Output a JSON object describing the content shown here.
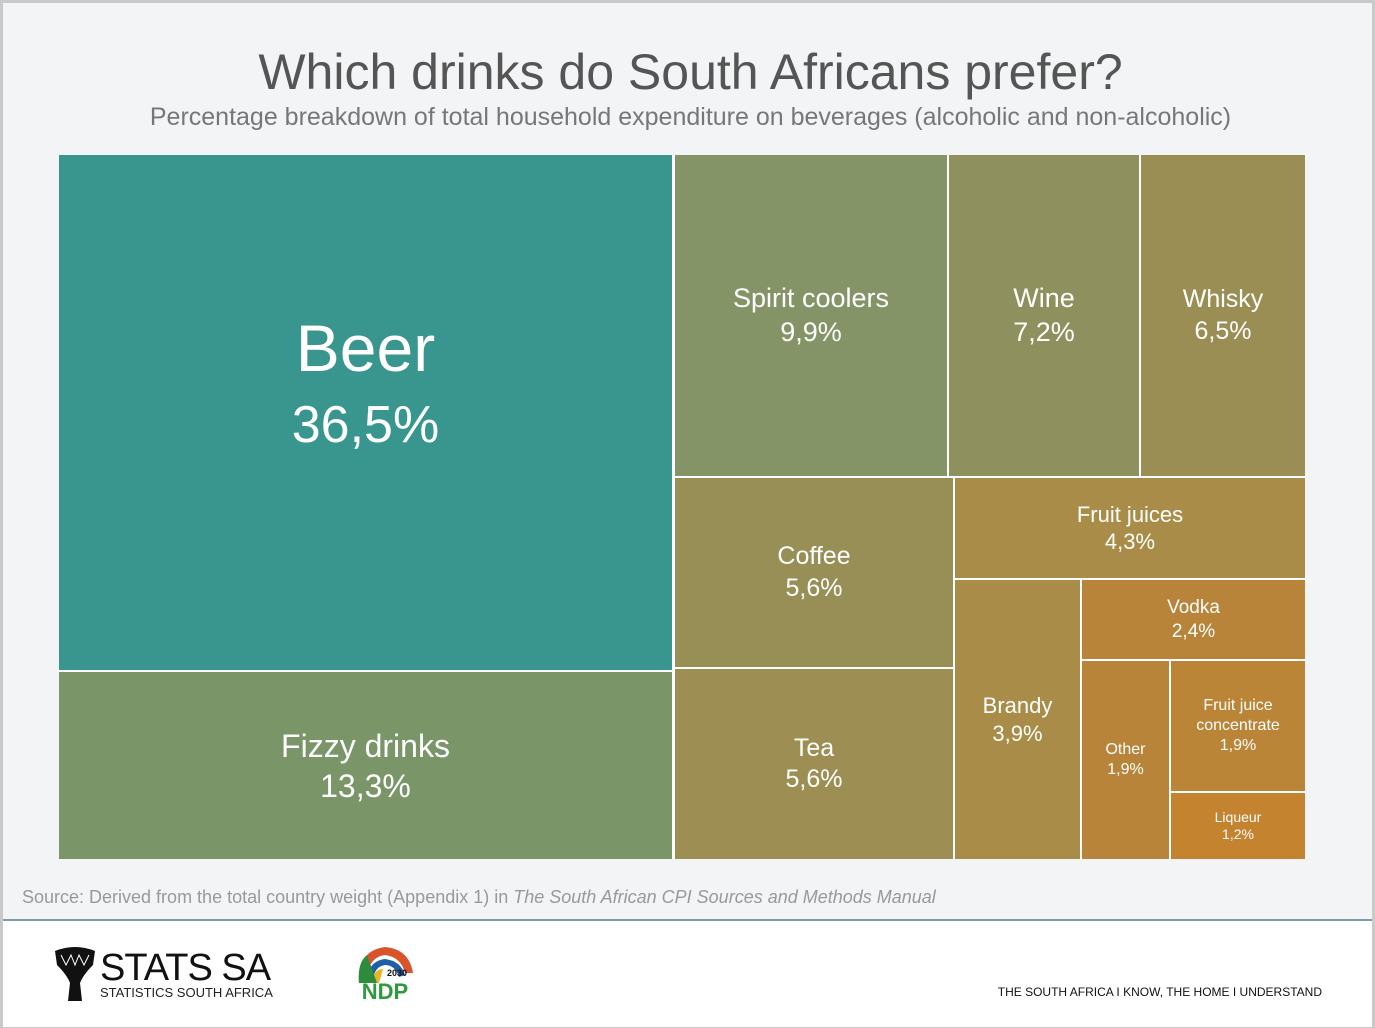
{
  "header": {
    "title": "Which drinks do South Africans prefer?",
    "subtitle": "Percentage breakdown of total household expenditure on beverages (alcoholic and non-alcoholic)"
  },
  "chart_data": {
    "type": "treemap",
    "title": "Which drinks do South Africans prefer?",
    "subtitle": "Percentage breakdown of total household expenditure on beverages (alcoholic and non-alcoholic)",
    "items": [
      {
        "label": "Beer",
        "value_label": "36,5%",
        "value": 36.5,
        "color": "#38968f"
      },
      {
        "label": "Fizzy drinks",
        "value_label": "13,3%",
        "value": 13.3,
        "color": "#7a9669"
      },
      {
        "label": "Spirit coolers",
        "value_label": "9,9%",
        "value": 9.9,
        "color": "#849467"
      },
      {
        "label": "Wine",
        "value_label": "7,2%",
        "value": 7.2,
        "color": "#8e915d"
      },
      {
        "label": "Whisky",
        "value_label": "6,5%",
        "value": 6.5,
        "color": "#9a8e54"
      },
      {
        "label": "Coffee",
        "value_label": "5,6%",
        "value": 5.6,
        "color": "#988f57"
      },
      {
        "label": "Tea",
        "value_label": "5,6%",
        "value": 5.6,
        "color": "#9d8f54"
      },
      {
        "label": "Fruit juices",
        "value_label": "4,3%",
        "value": 4.3,
        "color": "#a88c48"
      },
      {
        "label": "Brandy",
        "value_label": "3,9%",
        "value": 3.9,
        "color": "#a88c48"
      },
      {
        "label": "Vodka",
        "value_label": "2,4%",
        "value": 2.4,
        "color": "#b7843a"
      },
      {
        "label": "Other",
        "value_label": "1,9%",
        "value": 1.9,
        "color": "#b8843a"
      },
      {
        "label": "Fruit juice concentrate",
        "value_label": "1,9%",
        "value": 1.9,
        "color": "#ba8536"
      },
      {
        "label": "Liqueur",
        "value_label": "1,2%",
        "value": 1.2,
        "color": "#c3832f"
      }
    ]
  },
  "source": {
    "prefix": "Source: Derived from the total country weight (Appendix 1) in ",
    "italic": "The South African CPI Sources and Methods Manual"
  },
  "footer": {
    "logo_name": "STATS SA",
    "logo_sub": "STATISTICS SOUTH AFRICA",
    "ndp_text": "NDP",
    "ndp_year": "2030",
    "tagline": "THE SOUTH AFRICA I KNOW, THE HOME I UNDERSTAND"
  }
}
